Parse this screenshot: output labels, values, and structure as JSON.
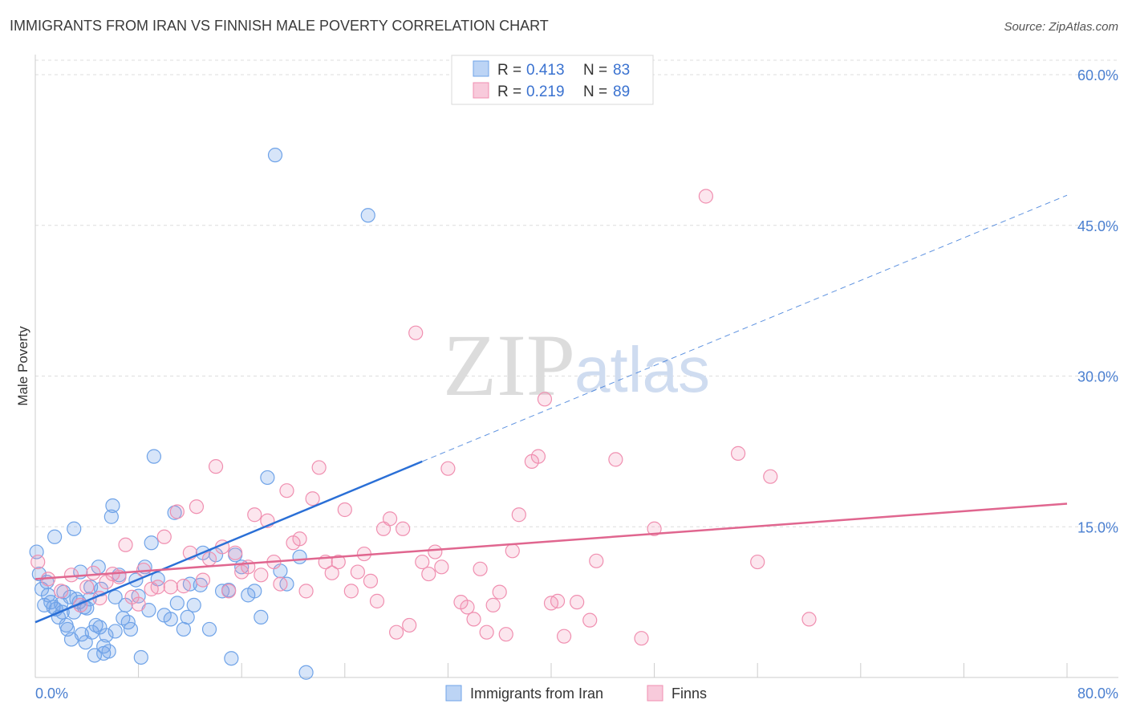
{
  "chart_data": {
    "type": "scatter",
    "title": "IMMIGRANTS FROM IRAN VS FINNISH MALE POVERTY CORRELATION CHART",
    "source": "Source: ZipAtlas.com",
    "ylabel": "Male Poverty",
    "xlim": [
      0,
      80
    ],
    "ylim": [
      0,
      62
    ],
    "x_tick_labels": [
      "0.0%",
      "80.0%"
    ],
    "y_ticks": [
      15,
      30,
      45,
      60
    ],
    "y_tick_labels": [
      "15.0%",
      "30.0%",
      "45.0%",
      "60.0%"
    ],
    "watermark": {
      "zip": "ZIP",
      "atlas": "atlas"
    },
    "legend": {
      "r_label": "R =",
      "n_label": "N =",
      "entries": [
        {
          "r": "0.413",
          "n": "83",
          "color": "#6fa3e8"
        },
        {
          "r": "0.219",
          "n": "89",
          "color": "#f08fb0"
        }
      ]
    },
    "series": [
      {
        "name": "Immigrants from Iran",
        "color": "#6fa3e8",
        "line_color": "#2a6fd6",
        "trend": {
          "x0": 0,
          "y0": 5.5,
          "x1": 30,
          "y1": 21.5,
          "dash_x1": 80,
          "dash_y1": 48
        },
        "points": [
          [
            0.1,
            12.5
          ],
          [
            0.3,
            10.3
          ],
          [
            0.5,
            8.8
          ],
          [
            0.7,
            7.2
          ],
          [
            0.9,
            9.5
          ],
          [
            1.0,
            8.2
          ],
          [
            1.2,
            7.5
          ],
          [
            1.4,
            7.0
          ],
          [
            1.5,
            14.0
          ],
          [
            1.6,
            6.8
          ],
          [
            1.8,
            6.0
          ],
          [
            2.0,
            7.3
          ],
          [
            2.2,
            8.5
          ],
          [
            2.4,
            5.2
          ],
          [
            2.5,
            4.8
          ],
          [
            2.7,
            8.0
          ],
          [
            2.8,
            3.8
          ],
          [
            3.0,
            6.5
          ],
          [
            3.2,
            7.8
          ],
          [
            3.0,
            14.8
          ],
          [
            3.4,
            7.5
          ],
          [
            3.5,
            10.5
          ],
          [
            3.6,
            4.3
          ],
          [
            3.8,
            7.0
          ],
          [
            4.0,
            6.9
          ],
          [
            4.2,
            7.8
          ],
          [
            4.4,
            4.5
          ],
          [
            4.6,
            2.2
          ],
          [
            4.7,
            5.2
          ],
          [
            4.9,
            11.0
          ],
          [
            5.0,
            5.0
          ],
          [
            5.1,
            8.8
          ],
          [
            5.3,
            3.1
          ],
          [
            5.3,
            2.4
          ],
          [
            5.5,
            4.2
          ],
          [
            5.7,
            2.6
          ],
          [
            5.9,
            16.0
          ],
          [
            6.0,
            17.1
          ],
          [
            6.2,
            4.6
          ],
          [
            6.2,
            8.0
          ],
          [
            6.5,
            10.2
          ],
          [
            7.0,
            7.2
          ],
          [
            7.4,
            4.8
          ],
          [
            7.8,
            9.7
          ],
          [
            8.0,
            8.1
          ],
          [
            8.2,
            2.0
          ],
          [
            8.5,
            11.0
          ],
          [
            8.8,
            6.7
          ],
          [
            9.0,
            13.4
          ],
          [
            9.2,
            22.0
          ],
          [
            9.5,
            9.8
          ],
          [
            10.0,
            6.2
          ],
          [
            10.5,
            5.8
          ],
          [
            10.8,
            16.4
          ],
          [
            11.0,
            7.4
          ],
          [
            11.5,
            4.8
          ],
          [
            11.8,
            6.0
          ],
          [
            12.0,
            9.3
          ],
          [
            12.3,
            7.2
          ],
          [
            12.8,
            9.2
          ],
          [
            13.0,
            12.4
          ],
          [
            13.5,
            4.8
          ],
          [
            14.0,
            12.2
          ],
          [
            14.5,
            8.6
          ],
          [
            15.0,
            8.7
          ],
          [
            15.5,
            12.2
          ],
          [
            16.0,
            11.0
          ],
          [
            16.5,
            8.2
          ],
          [
            17.0,
            8.6
          ],
          [
            17.5,
            6.0
          ],
          [
            18.0,
            19.9
          ],
          [
            18.6,
            52.0
          ],
          [
            19.0,
            10.6
          ],
          [
            19.5,
            9.3
          ],
          [
            20.5,
            12.0
          ],
          [
            21.0,
            0.5
          ],
          [
            25.8,
            46.0
          ],
          [
            15.2,
            1.9
          ],
          [
            7.2,
            5.5
          ],
          [
            3.9,
            3.5
          ],
          [
            4.3,
            9.0
          ],
          [
            6.8,
            5.9
          ],
          [
            2.1,
            6.5
          ]
        ]
      },
      {
        "name": "Finns",
        "color": "#f08fb0",
        "line_color": "#e0668f",
        "trend": {
          "x0": 0,
          "y0": 9.8,
          "x1": 80,
          "y1": 17.3
        },
        "points": [
          [
            0.2,
            11.5
          ],
          [
            1.0,
            9.8
          ],
          [
            2.0,
            8.6
          ],
          [
            2.8,
            10.2
          ],
          [
            3.5,
            7.2
          ],
          [
            4.0,
            9.0
          ],
          [
            4.5,
            10.4
          ],
          [
            5.0,
            7.9
          ],
          [
            5.5,
            9.5
          ],
          [
            6.0,
            10.3
          ],
          [
            6.5,
            10.0
          ],
          [
            7.0,
            13.2
          ],
          [
            7.5,
            8.0
          ],
          [
            8.0,
            7.3
          ],
          [
            8.4,
            10.7
          ],
          [
            9.0,
            8.8
          ],
          [
            9.5,
            9.0
          ],
          [
            10.0,
            14.0
          ],
          [
            10.5,
            9.0
          ],
          [
            11.0,
            16.5
          ],
          [
            11.5,
            9.1
          ],
          [
            12.0,
            12.4
          ],
          [
            12.5,
            17.0
          ],
          [
            13.0,
            9.7
          ],
          [
            13.5,
            11.8
          ],
          [
            14.0,
            21.0
          ],
          [
            14.5,
            13.0
          ],
          [
            15.0,
            8.6
          ],
          [
            15.5,
            12.4
          ],
          [
            16.0,
            10.5
          ],
          [
            16.5,
            11.0
          ],
          [
            17.0,
            16.2
          ],
          [
            17.5,
            10.2
          ],
          [
            18.0,
            15.6
          ],
          [
            18.5,
            11.5
          ],
          [
            19.0,
            9.3
          ],
          [
            19.5,
            18.6
          ],
          [
            20.0,
            13.4
          ],
          [
            20.5,
            13.8
          ],
          [
            21.0,
            8.6
          ],
          [
            21.5,
            17.8
          ],
          [
            22.0,
            20.9
          ],
          [
            22.5,
            11.5
          ],
          [
            23.0,
            10.4
          ],
          [
            23.5,
            11.5
          ],
          [
            24.0,
            16.7
          ],
          [
            24.5,
            8.6
          ],
          [
            25.0,
            10.5
          ],
          [
            25.5,
            12.3
          ],
          [
            26.0,
            9.6
          ],
          [
            26.5,
            7.6
          ],
          [
            27.0,
            14.8
          ],
          [
            27.5,
            15.8
          ],
          [
            28.0,
            4.5
          ],
          [
            28.5,
            14.8
          ],
          [
            29.0,
            5.2
          ],
          [
            29.5,
            34.3
          ],
          [
            30.0,
            11.5
          ],
          [
            30.5,
            10.3
          ],
          [
            31.0,
            12.5
          ],
          [
            31.5,
            11.0
          ],
          [
            32.0,
            20.8
          ],
          [
            33.0,
            7.5
          ],
          [
            33.5,
            7.0
          ],
          [
            34.0,
            5.8
          ],
          [
            34.5,
            10.8
          ],
          [
            35.0,
            4.5
          ],
          [
            35.5,
            7.2
          ],
          [
            36.0,
            8.5
          ],
          [
            36.5,
            4.3
          ],
          [
            37.0,
            12.6
          ],
          [
            37.5,
            16.2
          ],
          [
            38.5,
            21.5
          ],
          [
            39.0,
            22.0
          ],
          [
            39.5,
            27.7
          ],
          [
            40.0,
            7.4
          ],
          [
            40.5,
            7.6
          ],
          [
            41.0,
            4.1
          ],
          [
            42.0,
            7.5
          ],
          [
            43.0,
            5.7
          ],
          [
            43.5,
            11.6
          ],
          [
            45.0,
            21.7
          ],
          [
            47.0,
            3.9
          ],
          [
            48.0,
            14.8
          ],
          [
            52.0,
            47.9
          ],
          [
            54.5,
            22.3
          ],
          [
            56.0,
            11.5
          ],
          [
            57.0,
            20.0
          ],
          [
            60.0,
            5.8
          ]
        ]
      }
    ]
  }
}
